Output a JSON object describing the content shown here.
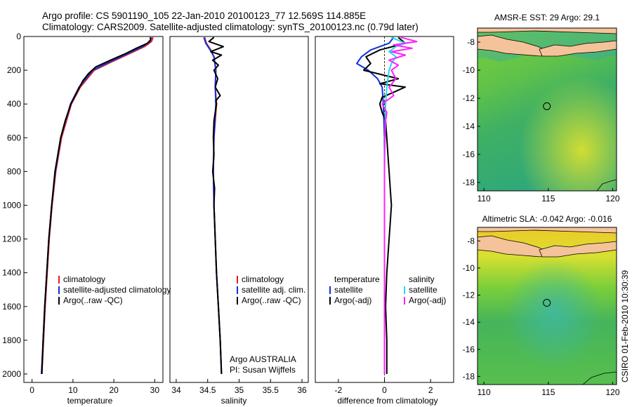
{
  "header": {
    "line1": "Argo profile: CS 5901190_105 22-Jan-2010 20100123_77 12.569S 114.885E",
    "line2": "Climatology: CARS2009. Satellite-adjusted climatology: synTS_20100123.nc (0.79d later)"
  },
  "side_label": "CSIRO 01-Feb-2010 10:30:39",
  "colors": {
    "climatology": "#e02020",
    "satellite": "#1030e0",
    "argo": "#000000",
    "sat_salinity": "#20d8f0",
    "argo_salinity": "#ff20ff",
    "land": "#f5c39a"
  },
  "chart_data": [
    {
      "type": "line",
      "panel": "temperature",
      "xlabel": "temperature",
      "ylabel": "",
      "xlim": [
        -2,
        32
      ],
      "ylim": [
        2050,
        0
      ],
      "xticks": [
        "0",
        "10",
        "20",
        "30"
      ],
      "xtick_values": [
        0,
        10,
        20,
        30
      ],
      "yticks": [
        "0",
        "200",
        "400",
        "600",
        "800",
        "1000",
        "1200",
        "1400",
        "1600",
        "1800",
        "2000"
      ],
      "ytick_values": [
        0,
        200,
        400,
        600,
        800,
        1000,
        1200,
        1400,
        1600,
        1800,
        2000
      ],
      "legend": [
        "climatology",
        "satellite-adjusted climatology",
        "Argo(..raw -QC)"
      ],
      "series": [
        {
          "name": "climatology",
          "color_key": "climatology",
          "depth": [
            5,
            30,
            60,
            100,
            150,
            200,
            300,
            400,
            600,
            800,
            1000,
            1200,
            1400,
            1600,
            1800,
            2000
          ],
          "values": [
            29.6,
            29.2,
            27.5,
            24,
            19.5,
            15.2,
            11.8,
            9.6,
            7.2,
            5.8,
            4.9,
            4.2,
            3.7,
            3.2,
            2.8,
            2.4
          ]
        },
        {
          "name": "satellite-adjusted climatology",
          "color_key": "satellite",
          "depth": [
            5,
            30,
            60,
            100,
            150,
            200,
            300,
            400,
            600,
            800,
            1000,
            1200,
            1400,
            1600,
            1800,
            2000
          ],
          "values": [
            29.2,
            28.8,
            27,
            23.5,
            19,
            14.8,
            11.5,
            9.4,
            7,
            5.7,
            4.8,
            4.1,
            3.6,
            3.1,
            2.7,
            2.3
          ]
        },
        {
          "name": "Argo(..raw -QC)",
          "color_key": "argo",
          "depth": [
            5,
            20,
            40,
            70,
            100,
            140,
            180,
            220,
            260,
            300,
            400,
            500,
            600,
            800,
            1000,
            1200,
            1400,
            1600,
            1800,
            2000
          ],
          "values": [
            28.9,
            29.0,
            28.2,
            25.5,
            23.0,
            19.2,
            15.6,
            13.8,
            12.5,
            11.6,
            9.5,
            8.1,
            7.0,
            5.6,
            4.8,
            4.1,
            3.6,
            3.1,
            2.7,
            2.4
          ]
        }
      ]
    },
    {
      "type": "line",
      "panel": "salinity",
      "xlabel": "salinity",
      "xlim": [
        33.9,
        36.1
      ],
      "ylim": [
        2050,
        0
      ],
      "xticks": [
        "34",
        "34.5",
        "35",
        "35.5",
        "36"
      ],
      "xtick_values": [
        34,
        34.5,
        35,
        35.5,
        36
      ],
      "legend": [
        "climatology",
        "satellite adj. clim.",
        "Argo(..raw -QC)"
      ],
      "annotation": [
        "Argo AUSTRALIA",
        "PI: Susan Wijffels"
      ],
      "series": [
        {
          "name": "climatology",
          "color_key": "climatology",
          "depth": [
            5,
            40,
            80,
            120,
            200,
            300,
            400,
            600,
            800,
            1000,
            1200,
            1400,
            1600,
            1800,
            2000
          ],
          "values": [
            34.45,
            34.48,
            34.55,
            34.6,
            34.63,
            34.62,
            34.64,
            34.6,
            34.59,
            34.6,
            34.62,
            34.64,
            34.67,
            34.7,
            34.72
          ]
        },
        {
          "name": "satellite adj. clim.",
          "color_key": "satellite",
          "depth": [
            5,
            40,
            80,
            120,
            200,
            300,
            400,
            600,
            800,
            1000,
            1200,
            1400,
            1600,
            1800,
            2000
          ],
          "values": [
            34.44,
            34.47,
            34.54,
            34.6,
            34.63,
            34.62,
            34.63,
            34.6,
            34.59,
            34.6,
            34.62,
            34.64,
            34.67,
            34.7,
            34.72
          ]
        },
        {
          "name": "Argo(..raw -QC)",
          "color_key": "argo",
          "depth": [
            5,
            30,
            60,
            90,
            110,
            140,
            170,
            200,
            250,
            300,
            350,
            380,
            400,
            500,
            600,
            700,
            800,
            900,
            1000,
            1200,
            1400,
            1600,
            1800,
            2000
          ],
          "values": [
            34.6,
            34.52,
            34.75,
            34.55,
            34.72,
            34.58,
            34.67,
            34.6,
            34.66,
            34.62,
            34.7,
            34.63,
            34.64,
            34.6,
            34.59,
            34.6,
            34.58,
            34.61,
            34.6,
            34.62,
            34.64,
            34.67,
            34.7,
            34.72
          ]
        }
      ]
    },
    {
      "type": "line",
      "panel": "difference",
      "xlabel": "difference from climatology",
      "xlim": [
        -3,
        3
      ],
      "ylim": [
        2050,
        0
      ],
      "xticks": [
        "-2",
        "0",
        "2"
      ],
      "xtick_values": [
        -2,
        0,
        2
      ],
      "legend_temperature": [
        "temperature",
        "satellite",
        "Argo(-adj)"
      ],
      "legend_salinity": [
        "salinity",
        "satellite",
        "Argo(-adj)"
      ],
      "series": [
        {
          "name": "temperature satellite",
          "color_key": "satellite",
          "depth": [
            5,
            40,
            80,
            120,
            160,
            200,
            250,
            300,
            400,
            600,
            800,
            1000,
            1400,
            1800,
            2000
          ],
          "values": [
            0.4,
            0.2,
            -0.6,
            -1.0,
            -1.2,
            -0.7,
            -0.3,
            -0.1,
            -0.05,
            0,
            0,
            0,
            0,
            0,
            0
          ]
        },
        {
          "name": "temperature Argo(-adj)",
          "color_key": "argo",
          "depth": [
            5,
            40,
            80,
            120,
            160,
            200,
            250,
            280,
            300,
            330,
            360,
            400,
            450,
            500,
            600,
            700,
            800,
            900,
            1000,
            1200,
            1400,
            1600,
            1800,
            2000
          ],
          "values": [
            0.6,
            0.9,
            -0.2,
            -0.8,
            -0.6,
            -0.9,
            0.6,
            -0.2,
            0.9,
            0.4,
            -0.1,
            -0.2,
            -0.1,
            0.05,
            0.1,
            0.15,
            0.2,
            0.25,
            0.3,
            0.2,
            0.1,
            0.05,
            0.1,
            0.1
          ]
        },
        {
          "name": "salinity satellite",
          "color_key": "sat_salinity",
          "depth": [
            5,
            40,
            60,
            90,
            120,
            160,
            200,
            300,
            400,
            600,
            800,
            1000,
            1400,
            1800,
            2000
          ],
          "values": [
            0.3,
            0.9,
            0.5,
            0.2,
            0.5,
            0.3,
            0.2,
            0.1,
            0.05,
            0.02,
            0,
            0,
            0,
            0,
            0
          ]
        },
        {
          "name": "salinity Argo(-adj)",
          "color_key": "argo_salinity",
          "depth": [
            5,
            30,
            50,
            70,
            90,
            110,
            140,
            170,
            200,
            250,
            300,
            350,
            400,
            450,
            500,
            700,
            1000,
            1400,
            1800,
            2000
          ],
          "values": [
            0.7,
            1.4,
            0.4,
            1.2,
            0.3,
            0.9,
            0.2,
            0.6,
            0.3,
            0.5,
            0.2,
            0.4,
            -0.1,
            0.1,
            0.05,
            0,
            0,
            0,
            0,
            0
          ]
        }
      ]
    }
  ],
  "maps": [
    {
      "title": "AMSR-E SST: 29 Argo: 29.1",
      "xticks": [
        "110",
        "115",
        "120"
      ],
      "xtick_values": [
        110,
        115,
        120
      ],
      "yticks": [
        "-8",
        "-10",
        "-12",
        "-14",
        "-16",
        "-18"
      ],
      "ytick_values": [
        -8,
        -10,
        -12,
        -14,
        -16,
        -18
      ],
      "lon_range": [
        109.5,
        120.3
      ],
      "lat_range": [
        -18.6,
        -7.0
      ],
      "marker": {
        "lon": 114.885,
        "lat": -12.569
      }
    },
    {
      "title": "Altimetric SLA: -0.042 Argo: -0.016",
      "xticks": [
        "110",
        "115",
        "120"
      ],
      "xtick_values": [
        110,
        115,
        120
      ],
      "yticks": [
        "-8",
        "-10",
        "-12",
        "-14",
        "-16",
        "-18"
      ],
      "ytick_values": [
        -8,
        -10,
        -12,
        -14,
        -16,
        -18
      ],
      "lon_range": [
        109.5,
        120.3
      ],
      "lat_range": [
        -18.6,
        -7.0
      ],
      "marker": {
        "lon": 114.885,
        "lat": -12.569
      }
    }
  ]
}
